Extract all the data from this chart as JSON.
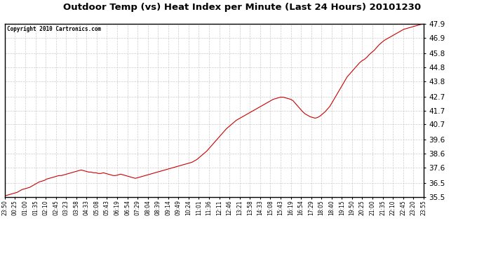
{
  "title": "Outdoor Temp (vs) Heat Index per Minute (Last 24 Hours) 20101230",
  "copyright": "Copyright 2010 Cartronics.com",
  "line_color": "#cc0000",
  "background_color": "#ffffff",
  "grid_color": "#cccccc",
  "ylim": [
    35.5,
    47.9
  ],
  "yticks": [
    35.5,
    36.5,
    37.6,
    38.6,
    39.6,
    40.7,
    41.7,
    42.7,
    43.8,
    44.8,
    45.8,
    46.9,
    47.9
  ],
  "xtick_labels": [
    "23:50",
    "00:25",
    "01:00",
    "01:35",
    "02:10",
    "02:45",
    "03:23",
    "03:58",
    "04:33",
    "05:08",
    "05:43",
    "06:19",
    "06:54",
    "07:29",
    "08:04",
    "08:39",
    "09:14",
    "09:49",
    "10:24",
    "11:01",
    "11:36",
    "12:11",
    "12:46",
    "13:21",
    "13:58",
    "14:33",
    "15:08",
    "15:43",
    "16:19",
    "16:54",
    "17:29",
    "18:05",
    "18:40",
    "19:15",
    "19:50",
    "20:25",
    "21:00",
    "21:35",
    "22:10",
    "22:45",
    "23:20",
    "23:55"
  ],
  "data_points": [
    35.6,
    35.65,
    35.7,
    35.75,
    35.8,
    35.85,
    35.95,
    36.05,
    36.1,
    36.15,
    36.2,
    36.3,
    36.4,
    36.5,
    36.6,
    36.65,
    36.7,
    36.8,
    36.85,
    36.9,
    36.95,
    37.0,
    37.05,
    37.05,
    37.1,
    37.15,
    37.2,
    37.25,
    37.3,
    37.35,
    37.4,
    37.45,
    37.4,
    37.35,
    37.3,
    37.3,
    37.25,
    37.25,
    37.2,
    37.2,
    37.25,
    37.2,
    37.15,
    37.1,
    37.05,
    37.05,
    37.1,
    37.15,
    37.1,
    37.05,
    37.0,
    36.95,
    36.9,
    36.85,
    36.9,
    36.95,
    37.0,
    37.05,
    37.1,
    37.15,
    37.2,
    37.25,
    37.3,
    37.35,
    37.4,
    37.45,
    37.5,
    37.55,
    37.6,
    37.65,
    37.7,
    37.75,
    37.8,
    37.85,
    37.9,
    37.95,
    38.0,
    38.1,
    38.2,
    38.35,
    38.5,
    38.65,
    38.8,
    39.0,
    39.2,
    39.4,
    39.6,
    39.8,
    40.0,
    40.2,
    40.4,
    40.55,
    40.7,
    40.85,
    41.0,
    41.1,
    41.2,
    41.3,
    41.4,
    41.5,
    41.6,
    41.7,
    41.8,
    41.9,
    42.0,
    42.1,
    42.2,
    42.3,
    42.4,
    42.5,
    42.55,
    42.6,
    42.65,
    42.65,
    42.6,
    42.55,
    42.5,
    42.4,
    42.2,
    42.0,
    41.8,
    41.6,
    41.45,
    41.35,
    41.25,
    41.2,
    41.15,
    41.2,
    41.3,
    41.45,
    41.6,
    41.8,
    42.0,
    42.3,
    42.6,
    42.9,
    43.2,
    43.5,
    43.8,
    44.1,
    44.3,
    44.5,
    44.7,
    44.9,
    45.1,
    45.25,
    45.35,
    45.5,
    45.7,
    45.85,
    46.0,
    46.2,
    46.4,
    46.55,
    46.7,
    46.8,
    46.9,
    47.0,
    47.1,
    47.2,
    47.3,
    47.4,
    47.5,
    47.55,
    47.6,
    47.65,
    47.7,
    47.75,
    47.8,
    47.85,
    47.9
  ]
}
